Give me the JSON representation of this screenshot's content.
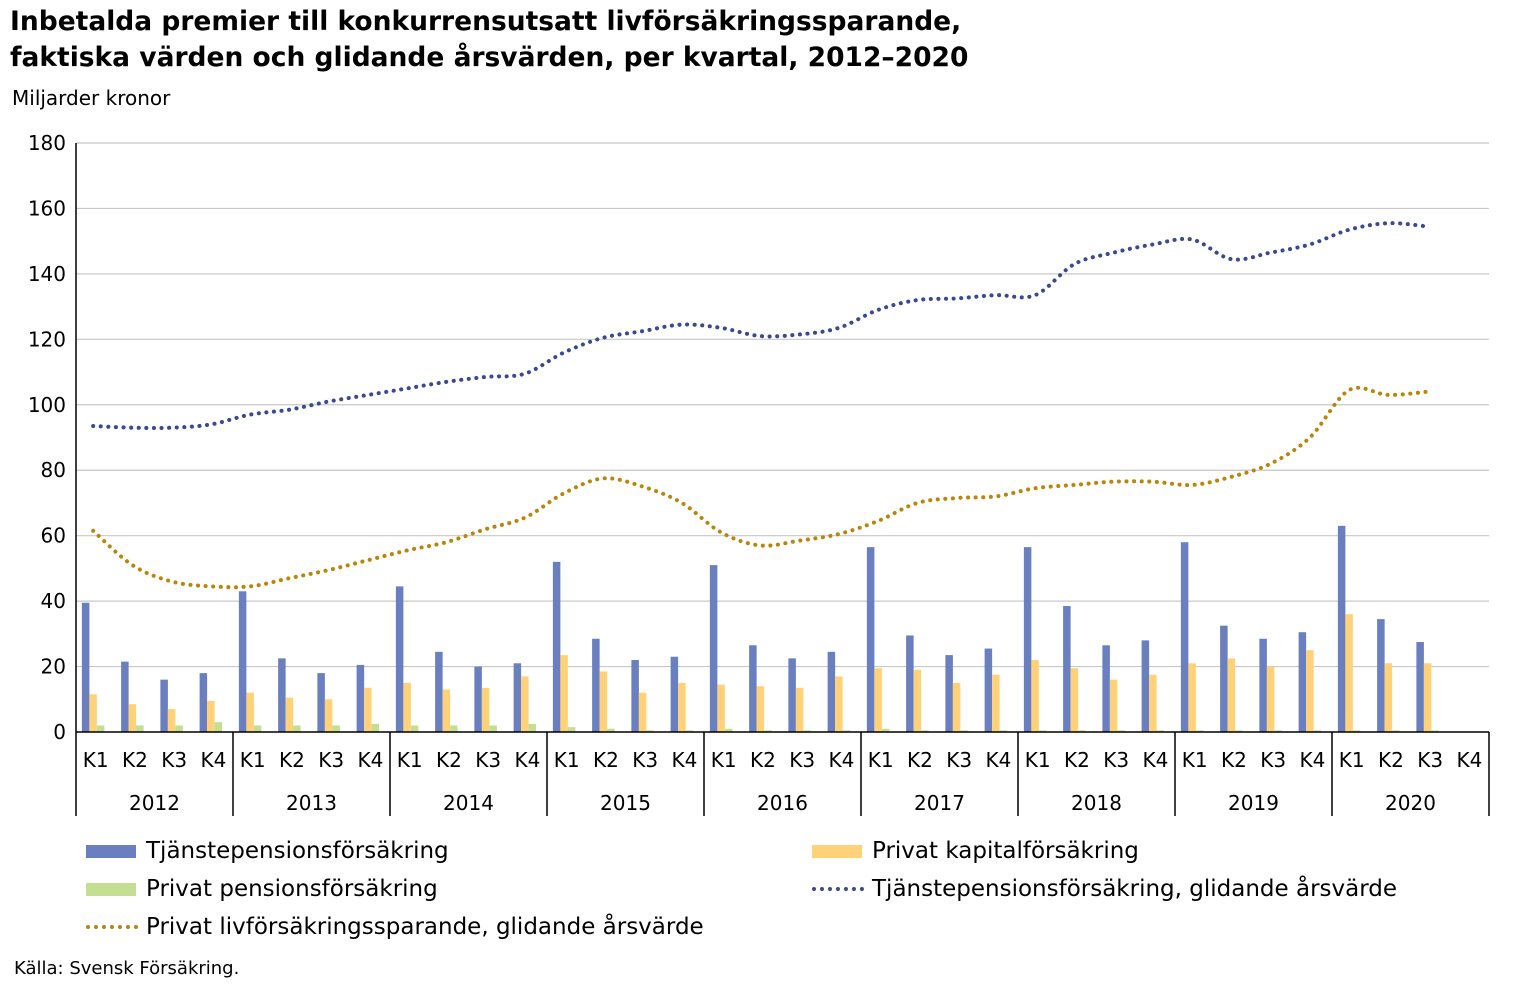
{
  "title_line1": "Inbetalda premier till konkurrensutsatt livförsäkringssparande,",
  "title_line2": "faktiska värden och glidande årsvärden, per kvartal, 2012–2020",
  "unit_label": "Miljarder kronor",
  "source": "Källa: Svensk Försäkring.",
  "colors": {
    "tjanstepension": "#6a7fc0",
    "kapital": "#ffd27a",
    "pension": "#c5df92",
    "tjanste_line": "#3a4a8c",
    "privat_line": "#b8860b",
    "grid": "#c8c8c8"
  },
  "chart_data": {
    "type": "bar",
    "ylim": [
      0,
      180
    ],
    "yticks": [
      "0",
      "20",
      "40",
      "60",
      "80",
      "100",
      "120",
      "140",
      "160",
      "180"
    ],
    "years": [
      "2012",
      "2013",
      "2014",
      "2015",
      "2016",
      "2017",
      "2018",
      "2019",
      "2020"
    ],
    "quarters": [
      "K1",
      "K2",
      "K3",
      "K4"
    ],
    "series": [
      {
        "name": "Tjänstepensionsförsäkring",
        "kind": "bar",
        "values": [
          39.5,
          21.5,
          16,
          18,
          43,
          22.5,
          18,
          20.5,
          44.5,
          24.5,
          20,
          21,
          52,
          28.5,
          22,
          23,
          51,
          26.5,
          22.5,
          24.5,
          56.5,
          29.5,
          23.5,
          25.5,
          56.5,
          38.5,
          26.5,
          28,
          58,
          32.5,
          28.5,
          30.5,
          63,
          34.5,
          27.5,
          null
        ]
      },
      {
        "name": "Privat kapitalförsäkring",
        "kind": "bar",
        "values": [
          11.5,
          8.5,
          7,
          9.5,
          12,
          10.5,
          10,
          13.5,
          15,
          13,
          13.5,
          17,
          23.5,
          18.5,
          12,
          15,
          14.5,
          14,
          13.5,
          17,
          19.5,
          19,
          15,
          17.5,
          22,
          19.5,
          16,
          17.5,
          21,
          22.5,
          20,
          25,
          36,
          21,
          21,
          null
        ]
      },
      {
        "name": "Privat pensionsförsäkring",
        "kind": "bar",
        "values": [
          2,
          2,
          2,
          3,
          2,
          2,
          2,
          2.5,
          2,
          2,
          2,
          2.5,
          1.5,
          1,
          0.5,
          0.5,
          1,
          0.5,
          0.5,
          0.5,
          1,
          0.5,
          0.5,
          0.5,
          0.5,
          0.5,
          0.5,
          0.5,
          0.5,
          0.5,
          0.5,
          0.5,
          0.5,
          0.5,
          0.5,
          null
        ]
      },
      {
        "name": "Tjänstepensionsförsäkring, glidande årsvärde",
        "kind": "line",
        "values": [
          93.5,
          93,
          93,
          94,
          97,
          98.5,
          101,
          103,
          105,
          107,
          108.5,
          109.5,
          116,
          120.5,
          122.5,
          124.5,
          123.5,
          121,
          121.5,
          123.5,
          129,
          132,
          132.5,
          133.5,
          133.5,
          143,
          146.5,
          149,
          150.5,
          144.5,
          146.5,
          149,
          153.5,
          155.5,
          154.5,
          null
        ]
      },
      {
        "name": "Privat livförsäkringssparande, glidande årsvärde",
        "kind": "line",
        "values": [
          61.5,
          51,
          46,
          44.5,
          44.5,
          47,
          49.5,
          52.5,
          55.5,
          58,
          62,
          65.5,
          73,
          77.5,
          75,
          70,
          61,
          57,
          58.5,
          60.5,
          64.5,
          70,
          71.5,
          72,
          74.5,
          75.5,
          76.5,
          76.5,
          75.5,
          78,
          82,
          90,
          104.5,
          103,
          104,
          null
        ]
      }
    ]
  }
}
